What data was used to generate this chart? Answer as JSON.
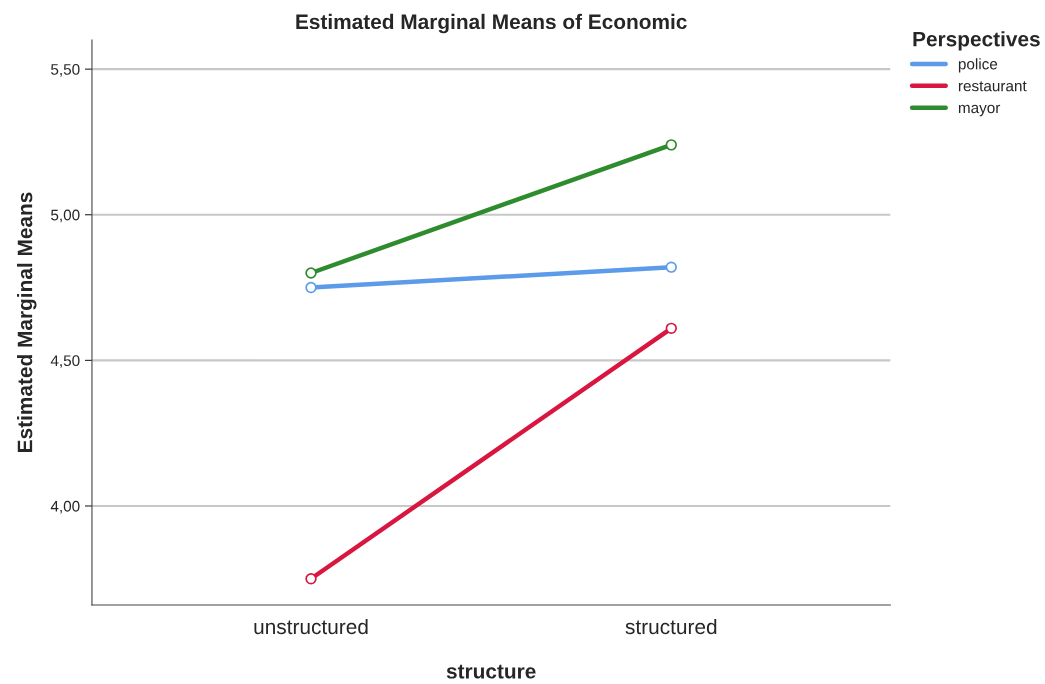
{
  "chart_data": {
    "type": "line",
    "title": "Estimated Marginal Means of Economic",
    "xlabel": "structure",
    "ylabel": "Estimated Marginal Means",
    "legend_title": "Perspectives",
    "categories": [
      "unstructured",
      "structured"
    ],
    "series": [
      {
        "name": "police",
        "color": "#5b9bea",
        "values": [
          4.75,
          4.82
        ]
      },
      {
        "name": "restaurant",
        "color": "#d8163f",
        "values": [
          3.75,
          4.61
        ]
      },
      {
        "name": "mayor",
        "color": "#2e8b2e",
        "values": [
          4.8,
          5.24
        ]
      }
    ],
    "ylim": [
      3.66,
      5.6
    ],
    "yticks": [
      {
        "value": 4.0,
        "label": "4,00"
      },
      {
        "value": 4.5,
        "label": "4,50"
      },
      {
        "value": 5.0,
        "label": "5,00"
      },
      {
        "value": 5.5,
        "label": "5,50"
      }
    ],
    "grid": "y",
    "legend": "top right",
    "marker": "circle",
    "line_style": "solid"
  }
}
